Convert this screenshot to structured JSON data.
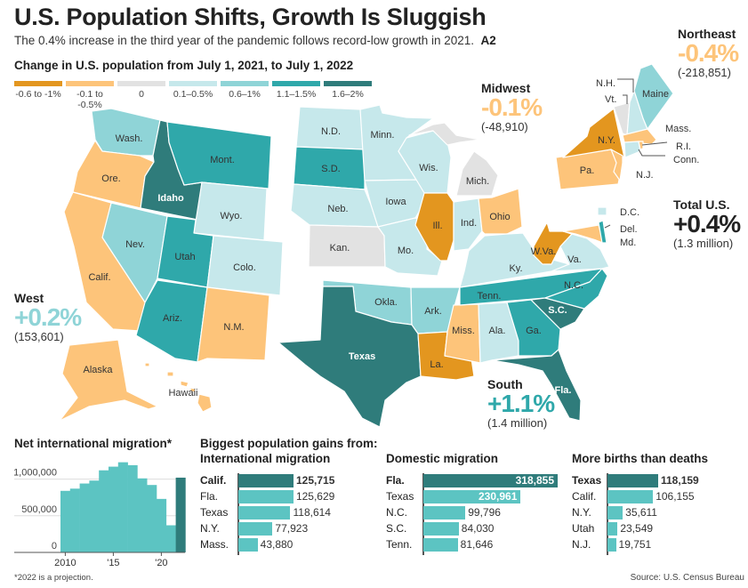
{
  "header": {
    "title": "U.S. Population Shifts, Growth Is Sluggish",
    "subtitle": "The 0.4% increase in the third year of the pandemic follows record-low growth in 2021.",
    "page_ref": "A2"
  },
  "map": {
    "title": "Change in U.S. population from July 1, 2021, to July 1, 2022",
    "legend": [
      {
        "label": "-0.6 to -1%",
        "color": "#e3961f"
      },
      {
        "label": "-0.1 to -0.5%",
        "color": "#fdc47a"
      },
      {
        "label": "0",
        "color": "#e2e2e2"
      },
      {
        "label": "0.1–0.5%",
        "color": "#c6e8eb"
      },
      {
        "label": "0.6–1%",
        "color": "#8fd4d7"
      },
      {
        "label": "1.1–1.5%",
        "color": "#2fa8aa"
      },
      {
        "label": "1.6–2%",
        "color": "#2f7c7b"
      }
    ],
    "states": [
      {
        "label": "Wash.",
        "bin": 4
      },
      {
        "label": "Ore.",
        "bin": 1
      },
      {
        "label": "Idaho",
        "bin": 6
      },
      {
        "label": "Mont.",
        "bin": 5
      },
      {
        "label": "Wyo.",
        "bin": 3
      },
      {
        "label": "Nev.",
        "bin": 4
      },
      {
        "label": "Calif.",
        "bin": 1
      },
      {
        "label": "Utah",
        "bin": 5
      },
      {
        "label": "Colo.",
        "bin": 3
      },
      {
        "label": "Ariz.",
        "bin": 5
      },
      {
        "label": "N.M.",
        "bin": 1
      },
      {
        "label": "Alaska",
        "bin": 1
      },
      {
        "label": "Hawaii",
        "bin": 1
      },
      {
        "label": "N.D.",
        "bin": 3
      },
      {
        "label": "S.D.",
        "bin": 5
      },
      {
        "label": "Neb.",
        "bin": 3
      },
      {
        "label": "Kan.",
        "bin": 2
      },
      {
        "label": "Minn.",
        "bin": 3
      },
      {
        "label": "Iowa",
        "bin": 3
      },
      {
        "label": "Mo.",
        "bin": 3
      },
      {
        "label": "Wis.",
        "bin": 3
      },
      {
        "label": "Ill.",
        "bin": 0
      },
      {
        "label": "Ind.",
        "bin": 3
      },
      {
        "label": "Ohio",
        "bin": 1
      },
      {
        "label": "Mich.",
        "bin": 2
      },
      {
        "label": "Okla.",
        "bin": 4
      },
      {
        "label": "Texas",
        "bin": 6
      },
      {
        "label": "Ark.",
        "bin": 4
      },
      {
        "label": "La.",
        "bin": 0
      },
      {
        "label": "Miss.",
        "bin": 1
      },
      {
        "label": "Ala.",
        "bin": 3
      },
      {
        "label": "Tenn.",
        "bin": 5
      },
      {
        "label": "Ky.",
        "bin": 3
      },
      {
        "label": "Ga.",
        "bin": 5
      },
      {
        "label": "S.C.",
        "bin": 6
      },
      {
        "label": "N.C.",
        "bin": 5
      },
      {
        "label": "Fla.",
        "bin": 6
      },
      {
        "label": "Va.",
        "bin": 3
      },
      {
        "label": "W.Va.",
        "bin": 0
      },
      {
        "label": "Md.",
        "bin": 1
      },
      {
        "label": "Del.",
        "bin": 5
      },
      {
        "label": "D.C.",
        "bin": 3
      },
      {
        "label": "Pa.",
        "bin": 1
      },
      {
        "label": "N.Y.",
        "bin": 0
      },
      {
        "label": "N.J.",
        "bin": 1
      },
      {
        "label": "Vt.",
        "bin": 2
      },
      {
        "label": "N.H.",
        "bin": 3
      },
      {
        "label": "Maine",
        "bin": 4
      },
      {
        "label": "Mass.",
        "bin": 1
      },
      {
        "label": "Conn.",
        "bin": 3
      },
      {
        "label": "R.I.",
        "bin": 1
      }
    ],
    "regions": {
      "west": {
        "name": "West",
        "change": "+0.2%",
        "count": "(153,601)",
        "color": "#8fd4d7"
      },
      "midwest": {
        "name": "Midwest",
        "change": "-0.1%",
        "count": "(-48,910)",
        "color": "#fdc47a"
      },
      "northeast": {
        "name": "Northeast",
        "change": "-0.4%",
        "count": "(-218,851)",
        "color": "#fdc47a"
      },
      "south": {
        "name": "South",
        "change": "+1.1%",
        "count": "(1.4 million)",
        "color": "#2fa8aa"
      },
      "total": {
        "name": "Total U.S.",
        "change": "+0.4%",
        "count": "(1.3 million)",
        "color": "#222222"
      }
    }
  },
  "chart_data": [
    {
      "type": "bar",
      "title": "Net international migration*",
      "x": [
        2010,
        2011,
        2012,
        2013,
        2014,
        2015,
        2016,
        2017,
        2018,
        2019,
        2020,
        2021,
        2022
      ],
      "values": [
        840000,
        870000,
        940000,
        980000,
        1120000,
        1170000,
        1230000,
        1190000,
        1010000,
        920000,
        730000,
        370000,
        1020000
      ],
      "ylim": [
        0,
        1300000
      ],
      "yticks": [
        "0",
        "500,000",
        "1,000,000"
      ],
      "xticks": [
        "2010",
        "'15",
        "'20"
      ],
      "grid": true,
      "highlight": 2022,
      "colors": {
        "bar": "#5cc4c2",
        "highlight": "#2f7c7b"
      },
      "footnote": "*2022 is a projection."
    },
    {
      "type": "bar",
      "orientation": "horizontal",
      "title": "Biggest population gains from:",
      "subtitle": "International migration",
      "categories": [
        "Calif.",
        "Fla.",
        "Texas",
        "N.Y.",
        "Mass."
      ],
      "values": [
        125715,
        125629,
        118614,
        77923,
        43880
      ],
      "value_labels": [
        "125,715",
        "125,629",
        "118,614",
        "77,923",
        "43,880"
      ]
    },
    {
      "type": "bar",
      "orientation": "horizontal",
      "title": "Domestic migration",
      "categories": [
        "Fla.",
        "Texas",
        "N.C.",
        "S.C.",
        "Tenn."
      ],
      "values": [
        318855,
        230961,
        99796,
        84030,
        81646
      ],
      "value_labels": [
        "318,855",
        "230,961",
        "99,796",
        "84,030",
        "81,646"
      ]
    },
    {
      "type": "bar",
      "orientation": "horizontal",
      "title": "More births than deaths",
      "categories": [
        "Texas",
        "Calif.",
        "N.Y.",
        "Utah",
        "N.J."
      ],
      "values": [
        118159,
        106155,
        35611,
        23549,
        19751
      ],
      "value_labels": [
        "118,159",
        "106,155",
        "35,611",
        "23,549",
        "19,751"
      ]
    }
  ],
  "source": "Source: U.S. Census Bureau"
}
